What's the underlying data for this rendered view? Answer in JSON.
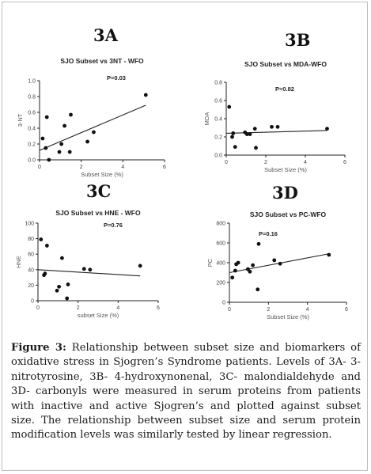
{
  "caption": {
    "label": "Figure 3:",
    "text": " Relationship between subset size and biomarkers of oxidative stress in Sjogren’s Syndrome patients. Levels of 3A- 3-nitrotyrosine, 3B- 4-hydroxynonenal, 3C- malondialdehyde and 3D- carbonyls were measured in serum proteins from patients with inactive and active Sjogren’s and plotted against subset size. The relationship between subset size and serum protein modification levels was similarly tested by linear regression."
  },
  "chart_data": [
    {
      "panel": "3A",
      "type": "scatter",
      "title": "SJO Subset vs 3NT - WFO",
      "pvalue": "P=0.03",
      "xlabel": "Subset Size (%)",
      "ylabel": "3-NT",
      "xlim": [
        0,
        6
      ],
      "ylim": [
        0,
        1.0
      ],
      "xticks": [
        "0",
        "2",
        "4",
        "6"
      ],
      "yticks": [
        "0.0",
        "0.2",
        "0.4",
        "0.6",
        "0.8",
        "1.0"
      ],
      "grid": false,
      "x": [
        0.15,
        0.3,
        0.35,
        0.45,
        0.95,
        1.05,
        1.2,
        1.45,
        1.5,
        2.3,
        2.6,
        5.1
      ],
      "y": [
        0.27,
        0.15,
        0.54,
        0.0,
        0.1,
        0.2,
        0.43,
        0.1,
        0.57,
        0.23,
        0.35,
        0.82
      ],
      "fit": {
        "x": [
          0,
          5.1
        ],
        "y": [
          0.12,
          0.69
        ]
      }
    },
    {
      "panel": "3B",
      "type": "scatter",
      "title": "SJO Subset vs MDA-WFO",
      "pvalue": "P=0.82",
      "xlabel": "Subset Size (%)",
      "ylabel": "MDA",
      "xlim": [
        0,
        6
      ],
      "ylim": [
        0,
        0.8
      ],
      "xticks": [
        "0",
        "2",
        "4",
        "6"
      ],
      "yticks": [
        "0.0",
        "0.2",
        "0.4",
        "0.6",
        "0.8"
      ],
      "grid": false,
      "x": [
        0.15,
        0.3,
        0.35,
        0.45,
        0.95,
        1.05,
        1.2,
        1.45,
        1.5,
        2.3,
        2.6,
        5.1
      ],
      "y": [
        0.53,
        0.2,
        0.24,
        0.09,
        0.25,
        0.23,
        0.23,
        0.29,
        0.08,
        0.31,
        0.31,
        0.29
      ],
      "fit": {
        "x": [
          0,
          5.1
        ],
        "y": [
          0.24,
          0.27
        ]
      }
    },
    {
      "panel": "3C",
      "type": "scatter",
      "title": "SJO Subset vs HNE - WFO",
      "pvalue": "P=0.76",
      "xlabel": "subset Size (%)",
      "ylabel": "HNE",
      "xlim": [
        0,
        6
      ],
      "ylim": [
        0,
        100
      ],
      "xticks": [
        "0",
        "2",
        "4",
        "6"
      ],
      "yticks": [
        "0",
        "20",
        "40",
        "60",
        "80",
        "100"
      ],
      "grid": false,
      "x": [
        0.15,
        0.3,
        0.35,
        0.45,
        0.95,
        1.05,
        1.2,
        1.45,
        1.5,
        2.3,
        2.6,
        5.1
      ],
      "y": [
        79,
        33,
        35,
        71,
        13,
        18,
        55,
        3,
        21,
        41,
        40,
        45
      ],
      "fit": {
        "x": [
          0,
          5.1
        ],
        "y": [
          40,
          32
        ]
      }
    },
    {
      "panel": "3D",
      "type": "scatter",
      "title": "SJO Subset vs PC-WFO",
      "pvalue": "P=0.16",
      "xlabel": "Subset Size (%)",
      "ylabel": "PC",
      "xlim": [
        0,
        6
      ],
      "ylim": [
        0,
        800
      ],
      "xticks": [
        "0",
        "2",
        "4",
        "6"
      ],
      "yticks": [
        "0",
        "200",
        "400",
        "600",
        "800"
      ],
      "grid": false,
      "x": [
        0.15,
        0.3,
        0.35,
        0.45,
        0.95,
        1.05,
        1.2,
        1.45,
        1.5,
        2.3,
        2.6,
        5.1
      ],
      "y": [
        250,
        320,
        385,
        400,
        335,
        310,
        375,
        130,
        590,
        425,
        390,
        480
      ],
      "fit": {
        "x": [
          0,
          5.1
        ],
        "y": [
          300,
          490
        ]
      }
    }
  ]
}
